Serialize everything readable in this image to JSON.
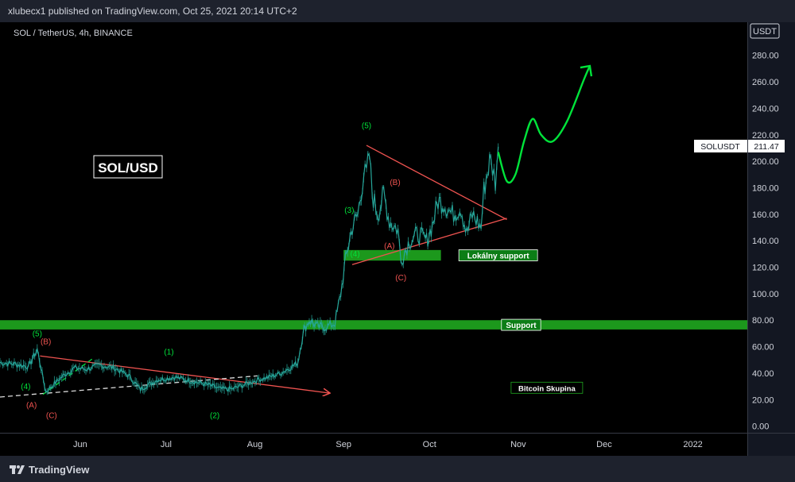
{
  "header": {
    "published_text": "xlubecx1 published on TradingView.com, Oct 25, 2021 20:14 UTC+2"
  },
  "footer": {
    "brand": "TradingView",
    "logo_icon": "tradingview-logo-icon"
  },
  "chart_data": {
    "type": "line",
    "symbol_title": "SOL / TetherUS, 4h, BINANCE",
    "currency": "USDT",
    "watermark": "SOL/USD",
    "x_ticks": [
      "Jun",
      "Jul",
      "Aug",
      "Sep",
      "Oct",
      "Nov",
      "Dec",
      "2022"
    ],
    "x_range": [
      "2021-05-04",
      "2022-01-20"
    ],
    "y_ticks": [
      "300.00",
      "280.00",
      "260.00",
      "240.00",
      "220.00",
      "200.00",
      "180.00",
      "160.00",
      "140.00",
      "120.00",
      "100.00",
      "80.00",
      "60.00",
      "40.00",
      "20.00",
      "0.00"
    ],
    "ylim": [
      -5,
      305
    ],
    "grid": false,
    "last_price": {
      "label": "SOLUSDT",
      "value": "211.47",
      "y": 211.47
    },
    "price_series": {
      "color": "#26a69a",
      "x": [
        "2021-05-04",
        "2021-05-09",
        "2021-05-14",
        "2021-05-17",
        "2021-05-20",
        "2021-05-23",
        "2021-05-26",
        "2021-05-30",
        "2021-06-03",
        "2021-06-08",
        "2021-06-13",
        "2021-06-18",
        "2021-06-22",
        "2021-06-28",
        "2021-07-04",
        "2021-07-10",
        "2021-07-16",
        "2021-07-20",
        "2021-07-24",
        "2021-07-28",
        "2021-08-02",
        "2021-08-06",
        "2021-08-10",
        "2021-08-14",
        "2021-08-16",
        "2021-08-18",
        "2021-08-20",
        "2021-08-23",
        "2021-08-26",
        "2021-08-29",
        "2021-08-31",
        "2021-09-02",
        "2021-09-04",
        "2021-09-06",
        "2021-09-08",
        "2021-09-09",
        "2021-09-10",
        "2021-09-11",
        "2021-09-13",
        "2021-09-15",
        "2021-09-17",
        "2021-09-20",
        "2021-09-21",
        "2021-09-24",
        "2021-09-27",
        "2021-09-30",
        "2021-10-02",
        "2021-10-04",
        "2021-10-06",
        "2021-10-09",
        "2021-10-12",
        "2021-10-14",
        "2021-10-16",
        "2021-10-19",
        "2021-10-20",
        "2021-10-22",
        "2021-10-23",
        "2021-10-24",
        "2021-10-25"
      ],
      "y": [
        48,
        47,
        45,
        58,
        26,
        32,
        38,
        44,
        43,
        46,
        44,
        38,
        28,
        35,
        37,
        34,
        31,
        28,
        28,
        31,
        35,
        37,
        40,
        45,
        48,
        72,
        80,
        75,
        75,
        78,
        100,
        130,
        150,
        160,
        190,
        190,
        205,
        175,
        160,
        175,
        155,
        148,
        125,
        140,
        145,
        140,
        152,
        170,
        168,
        160,
        165,
        145,
        160,
        150,
        178,
        200,
        195,
        185,
        211
      ]
    },
    "forecast_path": {
      "color": "#00e33a",
      "x": [
        "2021-10-25",
        "2021-10-28",
        "2021-10-31",
        "2021-11-03",
        "2021-11-06",
        "2021-11-09",
        "2021-11-13",
        "2021-11-18",
        "2021-11-24",
        "2021-11-26"
      ],
      "y": [
        207,
        185,
        190,
        215,
        232,
        220,
        215,
        230,
        262,
        272
      ]
    },
    "zones": [
      {
        "label": "Lokálny support",
        "y_low": 125,
        "y_high": 133,
        "x_start": "2021-09-01",
        "x_end": "2021-10-05",
        "label_x": "2021-10-25"
      },
      {
        "label": "Support",
        "y_low": 73,
        "y_high": 80,
        "x_start": "2021-05-04",
        "x_end": "2022-01-20",
        "label_x": "2021-11-02"
      }
    ],
    "trendlines": [
      {
        "color": "#ef5350",
        "x": [
          "2021-05-18",
          "2021-08-27"
        ],
        "y": [
          53,
          25
        ],
        "arrow": true
      },
      {
        "color": "#ef5350",
        "x": [
          "2021-09-09",
          "2021-10-28"
        ],
        "y": [
          212,
          156
        ]
      },
      {
        "color": "#ef5350",
        "x": [
          "2021-09-04",
          "2021-10-28"
        ],
        "y": [
          122,
          157
        ]
      },
      {
        "color": "#dbdbdb",
        "dashed": true,
        "x": [
          "2021-05-04",
          "2021-08-02"
        ],
        "y": [
          22,
          38
        ]
      },
      {
        "color": "#00e33a",
        "dashed": true,
        "x": [
          "2021-05-19",
          "2021-06-06"
        ],
        "y": [
          24,
          52
        ]
      }
    ],
    "wave_labels": [
      {
        "text": "(5)",
        "color": "#00e33a",
        "x": "2021-05-17",
        "y": 68
      },
      {
        "text": "(B)",
        "color": "#ef5350",
        "x": "2021-05-20",
        "y": 62
      },
      {
        "text": "(4)",
        "color": "#00e33a",
        "x": "2021-05-13",
        "y": 28
      },
      {
        "text": "(A)",
        "color": "#ef5350",
        "x": "2021-05-15",
        "y": 14
      },
      {
        "text": "(C)",
        "color": "#ef5350",
        "x": "2021-05-22",
        "y": 6
      },
      {
        "text": "(1)",
        "color": "#00e33a",
        "x": "2021-07-02",
        "y": 54
      },
      {
        "text": "(2)",
        "color": "#00e33a",
        "x": "2021-07-18",
        "y": 6
      },
      {
        "text": "(5)",
        "color": "#00e33a",
        "x": "2021-09-09",
        "y": 225
      },
      {
        "text": "(B)",
        "color": "#ef5350",
        "x": "2021-09-19",
        "y": 182
      },
      {
        "text": "(3)",
        "color": "#00e33a",
        "x": "2021-09-03",
        "y": 161
      },
      {
        "text": "(4)",
        "color": "#00e33a",
        "x": "2021-09-05",
        "y": 128
      },
      {
        "text": "(A)",
        "color": "#ef5350",
        "x": "2021-09-17",
        "y": 134
      },
      {
        "text": "(C)",
        "color": "#ef5350",
        "x": "2021-09-21",
        "y": 110
      }
    ],
    "annotations": [
      {
        "text": "Bitcoin Skupina",
        "x": "2021-11-11",
        "y": 29
      }
    ]
  }
}
